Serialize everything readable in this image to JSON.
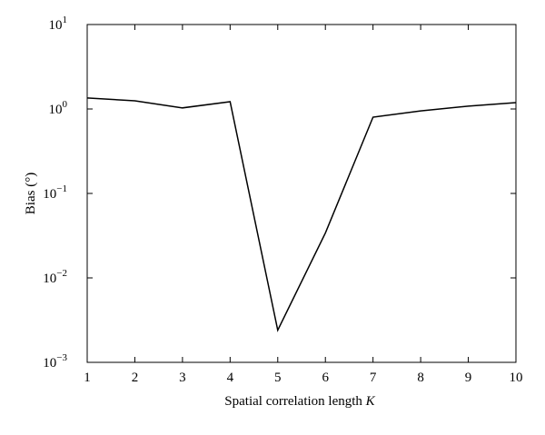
{
  "chart_data": {
    "type": "line",
    "xlabel": "Spatial correlation length",
    "xlabel_symbol": "K",
    "ylabel": "Bias (°)",
    "x": [
      1,
      2,
      3,
      4,
      5,
      6,
      7,
      8,
      9,
      10
    ],
    "series": [
      {
        "color": "#000000",
        "values": [
          1.35,
          1.25,
          1.03,
          1.22,
          0.0024,
          0.034,
          0.8,
          0.95,
          1.08,
          1.19
        ]
      }
    ],
    "xlim": [
      1,
      10
    ],
    "xticks": [
      1,
      2,
      3,
      4,
      5,
      6,
      7,
      8,
      9,
      10
    ],
    "ylim": [
      0.001,
      10
    ],
    "yscale": "log",
    "yticks": [
      {
        "value": 0.001,
        "label": "10",
        "exponent": "−3"
      },
      {
        "value": 0.01,
        "label": "10",
        "exponent": "−2"
      },
      {
        "value": 0.1,
        "label": "10",
        "exponent": "−1"
      },
      {
        "value": 1,
        "label": "10",
        "exponent": "0"
      },
      {
        "value": 10,
        "label": "10",
        "exponent": "1"
      }
    ]
  }
}
